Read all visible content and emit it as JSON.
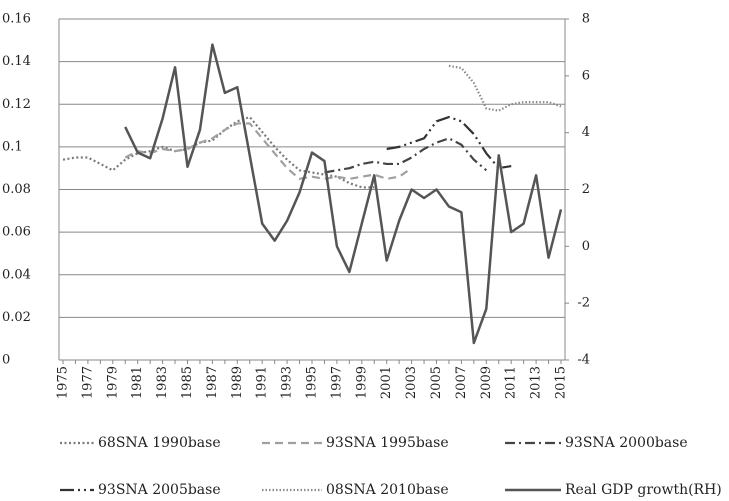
{
  "chart_data": {
    "type": "line",
    "x": [
      1975,
      1976,
      1977,
      1978,
      1979,
      1980,
      1981,
      1982,
      1983,
      1984,
      1985,
      1986,
      1987,
      1988,
      1989,
      1990,
      1991,
      1992,
      1993,
      1994,
      1995,
      1996,
      1997,
      1998,
      1999,
      2000,
      2001,
      2002,
      2003,
      2004,
      2005,
      2006,
      2007,
      2008,
      2009,
      2010,
      2011,
      2012,
      2013,
      2014,
      2015
    ],
    "xlim": [
      1975,
      2015
    ],
    "xticks": [
      1975,
      1977,
      1979,
      1981,
      1983,
      1985,
      1987,
      1989,
      1991,
      1993,
      1995,
      1997,
      1999,
      2001,
      2003,
      2005,
      2007,
      2009,
      2011,
      2013,
      2015
    ],
    "ylim": [
      0,
      0.16
    ],
    "yticks": [
      0,
      0.02,
      0.04,
      0.06,
      0.08,
      0.1,
      0.12,
      0.14,
      0.16
    ],
    "y2lim": [
      -4,
      8
    ],
    "y2ticks": [
      -4,
      -2,
      0,
      2,
      4,
      6,
      8
    ],
    "grid": true,
    "legend": "bottom",
    "series": [
      {
        "name": "68SNA 1990base",
        "color": "#7a7a7a",
        "dash": "2,2.5",
        "values": [
          0.094,
          0.095,
          0.095,
          0.092,
          0.089,
          0.094,
          0.097,
          0.098,
          0.1,
          0.098,
          0.099,
          0.102,
          0.103,
          0.108,
          0.112,
          0.114,
          0.107,
          0.1,
          0.094,
          0.089,
          0.088,
          0.087,
          0.086,
          0.083,
          0.081,
          0.081,
          null,
          null,
          null,
          null,
          null,
          null,
          null,
          null,
          null,
          null,
          null,
          null,
          null,
          null,
          null
        ]
      },
      {
        "name": "93SNA 1995base",
        "color": "#a0a0a0",
        "dash": "8,5",
        "values": [
          null,
          null,
          null,
          null,
          null,
          0.095,
          0.098,
          0.097,
          0.099,
          0.098,
          0.099,
          0.102,
          0.104,
          0.108,
          0.111,
          0.111,
          0.104,
          0.097,
          0.09,
          0.085,
          0.086,
          0.085,
          0.086,
          0.085,
          0.086,
          0.087,
          0.085,
          0.086,
          0.09,
          null,
          null,
          null,
          null,
          null,
          null,
          null,
          null,
          null,
          null,
          null,
          null
        ]
      },
      {
        "name": "93SNA 2000base",
        "color": "#444444",
        "dash": "10,4,2,4",
        "values": [
          null,
          null,
          null,
          null,
          null,
          null,
          null,
          null,
          null,
          null,
          null,
          null,
          null,
          null,
          null,
          null,
          null,
          null,
          null,
          null,
          null,
          0.088,
          0.089,
          0.09,
          0.092,
          0.093,
          0.092,
          0.092,
          0.095,
          0.099,
          0.102,
          0.104,
          0.101,
          0.094,
          0.089,
          null,
          null,
          null,
          null,
          null,
          null
        ]
      },
      {
        "name": "93SNA 2005base",
        "color": "#333333",
        "dash": "14,4,2,4,2,4",
        "values": [
          null,
          null,
          null,
          null,
          null,
          null,
          null,
          null,
          null,
          null,
          null,
          null,
          null,
          null,
          null,
          null,
          null,
          null,
          null,
          null,
          null,
          null,
          null,
          null,
          null,
          null,
          0.099,
          0.1,
          0.102,
          0.104,
          0.112,
          0.114,
          0.112,
          0.106,
          0.097,
          0.09,
          0.091,
          null,
          null,
          null,
          null
        ]
      },
      {
        "name": "08SNA 2010base",
        "color": "#8a8a8a",
        "dash": "1.5,2",
        "values": [
          null,
          null,
          null,
          null,
          null,
          null,
          null,
          null,
          null,
          null,
          null,
          null,
          null,
          null,
          null,
          null,
          null,
          null,
          null,
          null,
          null,
          null,
          null,
          null,
          null,
          null,
          null,
          null,
          null,
          null,
          null,
          0.138,
          0.137,
          0.13,
          0.118,
          0.117,
          0.12,
          0.121,
          0.121,
          0.121,
          0.119
        ]
      },
      {
        "name": "Real GDP growth(RH)",
        "color": "#555555",
        "axis": "y2",
        "values": [
          null,
          null,
          null,
          null,
          null,
          4.2,
          3.3,
          3.1,
          4.5,
          6.3,
          2.8,
          4.1,
          7.1,
          5.4,
          5.6,
          3.2,
          0.8,
          0.2,
          0.9,
          1.9,
          3.3,
          3.0,
          0.0,
          -0.9,
          0.8,
          2.5,
          -0.5,
          0.9,
          2.0,
          1.7,
          2.0,
          1.4,
          1.2,
          -3.4,
          -2.2,
          3.2,
          0.5,
          0.8,
          2.5,
          -0.4,
          1.3
        ]
      }
    ]
  }
}
